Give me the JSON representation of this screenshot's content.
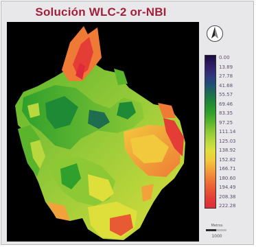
{
  "title": "Solución WLC-2 or-NBI",
  "legend": {
    "labels": [
      "0.00",
      "13.89",
      "27.78",
      "41.68",
      "55.57",
      "69.46",
      "83.35",
      "97.25",
      "111.14",
      "125.03",
      "138.92",
      "152.82",
      "166.71",
      "180.60",
      "194.49",
      "208.38",
      "222.28"
    ],
    "gradient_colors": [
      "#1c0b3f",
      "#2f1c63",
      "#32327a",
      "#1f4f78",
      "#1e6d4e",
      "#1f8a35",
      "#2fa02c",
      "#5bb52c",
      "#8dc935",
      "#b8d83e",
      "#dfdf3c",
      "#f2c83d",
      "#f3a13a",
      "#ef7a36",
      "#e85a33",
      "#e33d35",
      "#de2a3a"
    ]
  },
  "north_arrow": {
    "icon": "north-arrow-icon"
  },
  "scale_bar": {
    "unit": "Metros",
    "value": "1000"
  },
  "colors": {
    "title": "#a3203b",
    "background": "#e8e8ea",
    "map_background": "#000000"
  }
}
